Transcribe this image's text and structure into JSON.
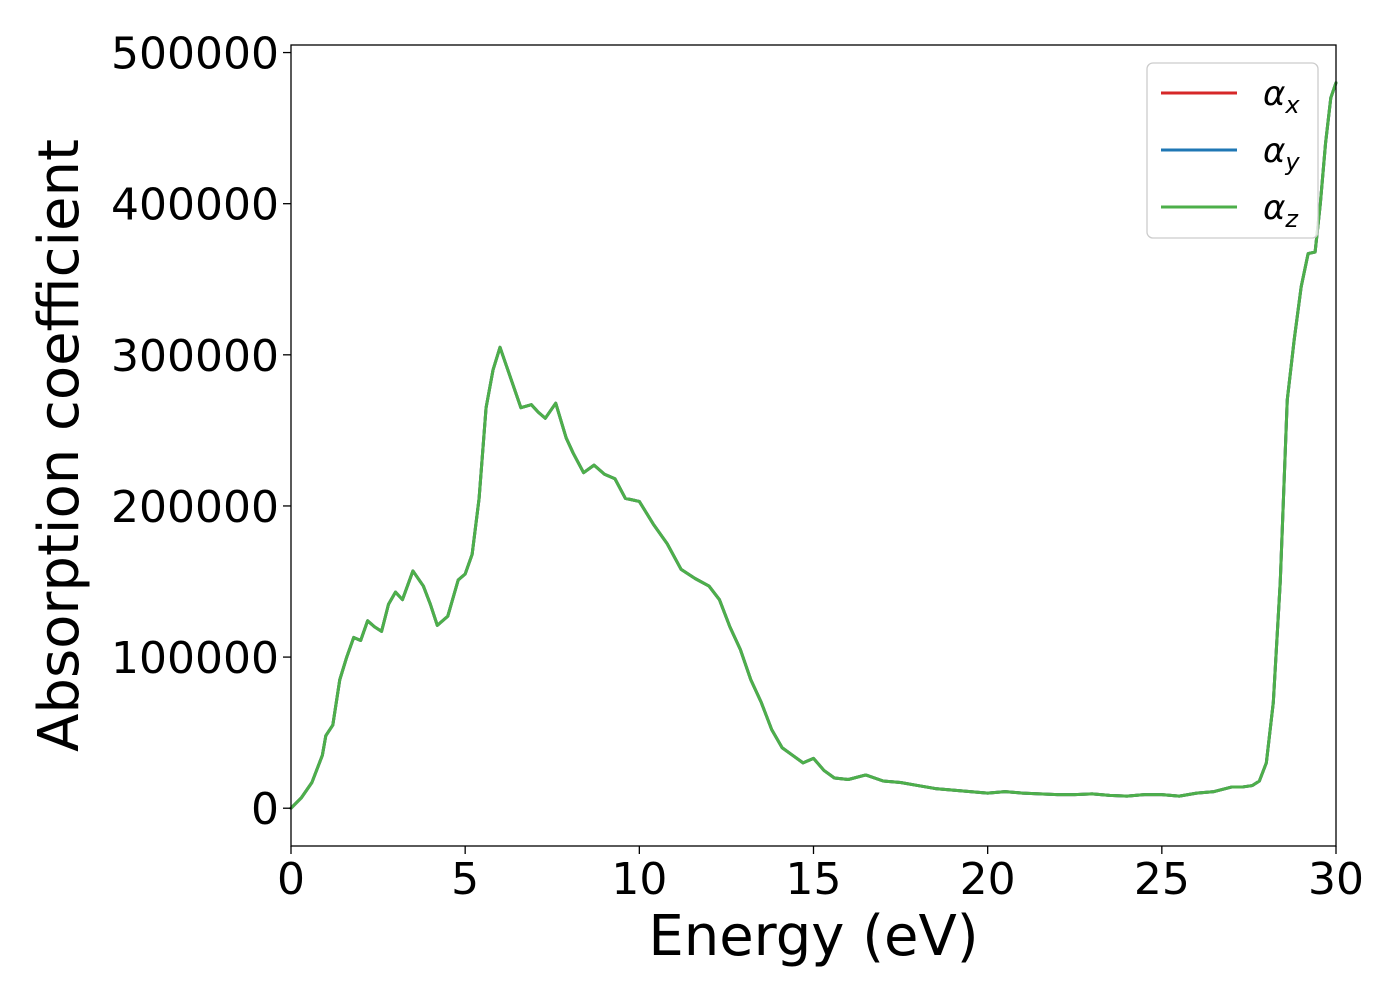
{
  "chart_data": {
    "type": "line",
    "title": "",
    "xlabel": "Energy (eV)",
    "ylabel": "Absorption coefficient",
    "xlim": [
      0,
      30
    ],
    "ylim": [
      -25000,
      505000
    ],
    "xticks": [
      0,
      5,
      10,
      15,
      20,
      25,
      30
    ],
    "xtick_labels": [
      "0",
      "5",
      "10",
      "15",
      "20",
      "25",
      "30"
    ],
    "yticks": [
      0,
      100000,
      200000,
      300000,
      400000,
      500000
    ],
    "ytick_labels": [
      "0",
      "100000",
      "200000",
      "300000",
      "400000",
      "500000"
    ],
    "grid": false,
    "legend_position": "top-right",
    "series": [
      {
        "name": "α_x",
        "legend_base": "α",
        "legend_sub": "x",
        "color": "#d62728",
        "x": [
          0,
          0.3,
          0.6,
          0.9,
          1.0,
          1.2,
          1.4,
          1.6,
          1.8,
          2.0,
          2.2,
          2.4,
          2.6,
          2.8,
          3.0,
          3.2,
          3.5,
          3.8,
          4.0,
          4.2,
          4.5,
          4.8,
          5.0,
          5.2,
          5.4,
          5.6,
          5.8,
          6.0,
          6.3,
          6.6,
          6.9,
          7.1,
          7.3,
          7.6,
          7.9,
          8.1,
          8.4,
          8.7,
          9.0,
          9.3,
          9.6,
          10.0,
          10.4,
          10.8,
          11.2,
          11.6,
          12.0,
          12.3,
          12.6,
          12.9,
          13.2,
          13.5,
          13.8,
          14.1,
          14.4,
          14.7,
          15.0,
          15.3,
          15.6,
          16.0,
          16.5,
          17.0,
          17.5,
          18.0,
          18.5,
          19.0,
          19.5,
          20.0,
          20.5,
          21.0,
          21.5,
          22.0,
          22.5,
          23.0,
          23.5,
          24.0,
          24.5,
          25.0,
          25.5,
          26.0,
          26.5,
          27.0,
          27.3,
          27.6,
          27.8,
          28.0,
          28.2,
          28.4,
          28.6,
          28.8,
          29.0,
          29.2,
          29.4,
          29.55,
          29.7,
          29.85,
          30.0
        ],
        "values": [
          0,
          7000,
          17000,
          35000,
          48000,
          55000,
          85000,
          100000,
          113000,
          111000,
          124000,
          120000,
          117000,
          135000,
          143000,
          138000,
          157000,
          147000,
          135000,
          121000,
          127000,
          151000,
          155000,
          168000,
          205000,
          265000,
          290000,
          305000,
          285000,
          265000,
          267000,
          262000,
          258000,
          268000,
          245000,
          235000,
          222000,
          227000,
          221000,
          218000,
          205000,
          203000,
          188000,
          175000,
          158000,
          152000,
          147000,
          138000,
          120000,
          105000,
          85000,
          70000,
          52000,
          40000,
          35000,
          30000,
          33000,
          25000,
          20000,
          19000,
          22000,
          18000,
          17000,
          15000,
          13000,
          12000,
          11000,
          10000,
          11000,
          10000,
          9500,
          9000,
          9000,
          9500,
          8500,
          8000,
          9000,
          9000,
          8000,
          10000,
          11000,
          14000,
          14000,
          15000,
          18000,
          30000,
          70000,
          150000,
          270000,
          310000,
          345000,
          367000,
          368000,
          400000,
          440000,
          470000,
          480000
        ]
      },
      {
        "name": "α_y",
        "legend_base": "α",
        "legend_sub": "y",
        "color": "#1f77b4",
        "x": [
          0,
          0.3,
          0.6,
          0.9,
          1.0,
          1.2,
          1.4,
          1.6,
          1.8,
          2.0,
          2.2,
          2.4,
          2.6,
          2.8,
          3.0,
          3.2,
          3.5,
          3.8,
          4.0,
          4.2,
          4.5,
          4.8,
          5.0,
          5.2,
          5.4,
          5.6,
          5.8,
          6.0,
          6.3,
          6.6,
          6.9,
          7.1,
          7.3,
          7.6,
          7.9,
          8.1,
          8.4,
          8.7,
          9.0,
          9.3,
          9.6,
          10.0,
          10.4,
          10.8,
          11.2,
          11.6,
          12.0,
          12.3,
          12.6,
          12.9,
          13.2,
          13.5,
          13.8,
          14.1,
          14.4,
          14.7,
          15.0,
          15.3,
          15.6,
          16.0,
          16.5,
          17.0,
          17.5,
          18.0,
          18.5,
          19.0,
          19.5,
          20.0,
          20.5,
          21.0,
          21.5,
          22.0,
          22.5,
          23.0,
          23.5,
          24.0,
          24.5,
          25.0,
          25.5,
          26.0,
          26.5,
          27.0,
          27.3,
          27.6,
          27.8,
          28.0,
          28.2,
          28.4,
          28.6,
          28.8,
          29.0,
          29.2,
          29.4,
          29.55,
          29.7,
          29.85,
          30.0
        ],
        "values": [
          0,
          7000,
          17000,
          35000,
          48000,
          55000,
          85000,
          100000,
          113000,
          111000,
          124000,
          120000,
          117000,
          135000,
          143000,
          138000,
          157000,
          147000,
          135000,
          121000,
          127000,
          151000,
          155000,
          168000,
          205000,
          265000,
          290000,
          305000,
          285000,
          265000,
          267000,
          262000,
          258000,
          268000,
          245000,
          235000,
          222000,
          227000,
          221000,
          218000,
          205000,
          203000,
          188000,
          175000,
          158000,
          152000,
          147000,
          138000,
          120000,
          105000,
          85000,
          70000,
          52000,
          40000,
          35000,
          30000,
          33000,
          25000,
          20000,
          19000,
          22000,
          18000,
          17000,
          15000,
          13000,
          12000,
          11000,
          10000,
          11000,
          10000,
          9500,
          9000,
          9000,
          9500,
          8500,
          8000,
          9000,
          9000,
          8000,
          10000,
          11000,
          14000,
          14000,
          15000,
          18000,
          30000,
          70000,
          150000,
          270000,
          310000,
          345000,
          367000,
          368000,
          400000,
          440000,
          470000,
          480000
        ]
      },
      {
        "name": "α_z",
        "legend_base": "α",
        "legend_sub": "z",
        "color": "#4daf4a",
        "x": [
          0,
          0.3,
          0.6,
          0.9,
          1.0,
          1.2,
          1.4,
          1.6,
          1.8,
          2.0,
          2.2,
          2.4,
          2.6,
          2.8,
          3.0,
          3.2,
          3.5,
          3.8,
          4.0,
          4.2,
          4.5,
          4.8,
          5.0,
          5.2,
          5.4,
          5.6,
          5.8,
          6.0,
          6.3,
          6.6,
          6.9,
          7.1,
          7.3,
          7.6,
          7.9,
          8.1,
          8.4,
          8.7,
          9.0,
          9.3,
          9.6,
          10.0,
          10.4,
          10.8,
          11.2,
          11.6,
          12.0,
          12.3,
          12.6,
          12.9,
          13.2,
          13.5,
          13.8,
          14.1,
          14.4,
          14.7,
          15.0,
          15.3,
          15.6,
          16.0,
          16.5,
          17.0,
          17.5,
          18.0,
          18.5,
          19.0,
          19.5,
          20.0,
          20.5,
          21.0,
          21.5,
          22.0,
          22.5,
          23.0,
          23.5,
          24.0,
          24.5,
          25.0,
          25.5,
          26.0,
          26.5,
          27.0,
          27.3,
          27.6,
          27.8,
          28.0,
          28.2,
          28.4,
          28.6,
          28.8,
          29.0,
          29.2,
          29.4,
          29.55,
          29.7,
          29.85,
          30.0
        ],
        "values": [
          0,
          7000,
          17000,
          35000,
          48000,
          55000,
          85000,
          100000,
          113000,
          111000,
          124000,
          120000,
          117000,
          135000,
          143000,
          138000,
          157000,
          147000,
          135000,
          121000,
          127000,
          151000,
          155000,
          168000,
          205000,
          265000,
          290000,
          305000,
          285000,
          265000,
          267000,
          262000,
          258000,
          268000,
          245000,
          235000,
          222000,
          227000,
          221000,
          218000,
          205000,
          203000,
          188000,
          175000,
          158000,
          152000,
          147000,
          138000,
          120000,
          105000,
          85000,
          70000,
          52000,
          40000,
          35000,
          30000,
          33000,
          25000,
          20000,
          19000,
          22000,
          18000,
          17000,
          15000,
          13000,
          12000,
          11000,
          10000,
          11000,
          10000,
          9500,
          9000,
          9000,
          9500,
          8500,
          8000,
          9000,
          9000,
          8000,
          10000,
          11000,
          14000,
          14000,
          15000,
          18000,
          30000,
          70000,
          150000,
          270000,
          310000,
          345000,
          367000,
          368000,
          400000,
          440000,
          470000,
          480000
        ]
      }
    ]
  }
}
